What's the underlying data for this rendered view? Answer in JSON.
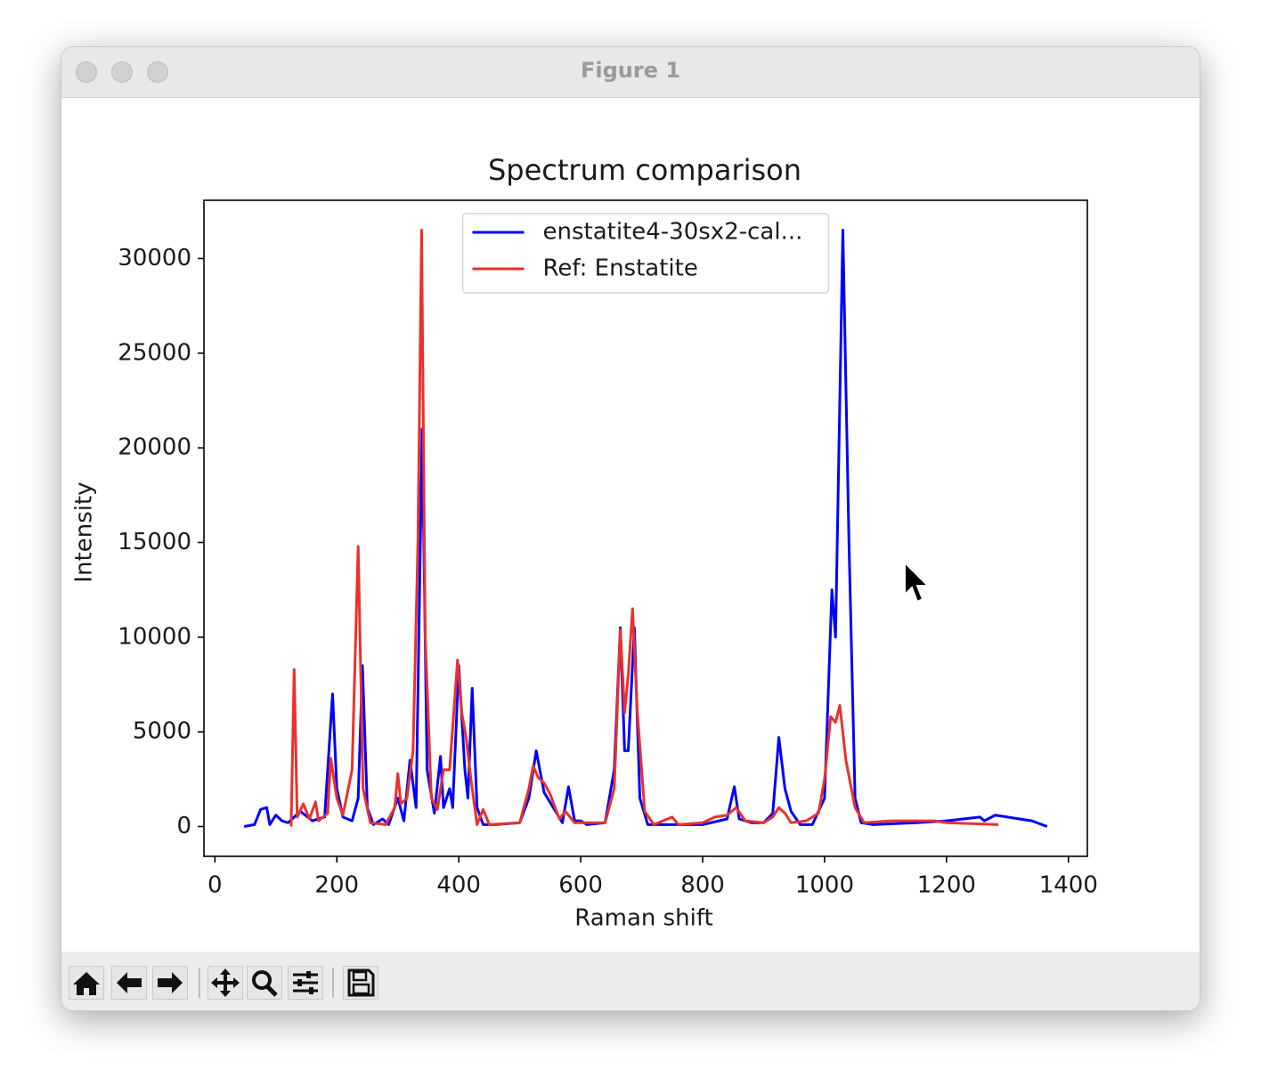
{
  "window": {
    "title": "Figure 1"
  },
  "chart_data": {
    "type": "line",
    "title": "Spectrum comparison",
    "x_label": "Raman shift",
    "y_label": "Intensity",
    "xlim": [
      -18,
      1431
    ],
    "ylim": [
      -1575,
      33075
    ],
    "xticks": [
      0,
      200,
      400,
      600,
      800,
      1000,
      1200,
      1400
    ],
    "yticks": [
      0,
      5000,
      10000,
      15000,
      20000,
      25000,
      30000
    ],
    "legend": "upper center",
    "grid": false,
    "series": [
      {
        "name": "enstatite4-30sx2-cal...",
        "color": "#0000ff",
        "x": [
          48,
          65,
          75,
          85,
          90,
          100,
          110,
          120,
          140,
          160,
          180,
          193,
          200,
          210,
          225,
          235,
          242,
          250,
          260,
          275,
          285,
          300,
          310,
          320,
          330,
          340,
          348,
          360,
          370,
          375,
          385,
          390,
          400,
          410,
          415,
          422,
          430,
          440,
          460,
          500,
          515,
          527,
          540,
          555,
          570,
          580,
          590,
          600,
          610,
          640,
          655,
          665,
          672,
          678,
          688,
          697,
          710,
          740,
          800,
          840,
          852,
          860,
          880,
          900,
          915,
          925,
          935,
          945,
          960,
          980,
          1000,
          1012,
          1018,
          1030,
          1040,
          1050,
          1060,
          1080,
          1150,
          1200,
          1255,
          1262,
          1280,
          1300,
          1340,
          1365
        ],
        "values": [
          0,
          100,
          900,
          1000,
          100,
          600,
          300,
          200,
          800,
          300,
          500,
          7000,
          2000,
          500,
          300,
          1500,
          8500,
          1000,
          100,
          400,
          100,
          1500,
          300,
          3500,
          1000,
          21000,
          3000,
          700,
          3700,
          1000,
          2000,
          1000,
          8500,
          3000,
          1500,
          7300,
          1000,
          100,
          100,
          200,
          1500,
          4000,
          1800,
          1000,
          200,
          2100,
          300,
          300,
          100,
          200,
          3000,
          10500,
          4000,
          4000,
          10500,
          1500,
          100,
          100,
          100,
          400,
          2100,
          400,
          200,
          200,
          700,
          4700,
          2000,
          800,
          100,
          100,
          1500,
          12500,
          10000,
          31500,
          15000,
          1500,
          200,
          100,
          200,
          300,
          500,
          300,
          600,
          500,
          300,
          0
        ]
      },
      {
        "name": "Ref: Enstatite",
        "color": "#e8322b",
        "x": [
          125,
          130,
          135,
          145,
          155,
          165,
          170,
          185,
          190,
          200,
          210,
          225,
          235,
          243,
          255,
          280,
          295,
          300,
          305,
          315,
          325,
          333,
          339,
          345,
          355,
          365,
          375,
          385,
          398,
          405,
          412,
          420,
          430,
          440,
          450,
          500,
          515,
          522,
          530,
          540,
          550,
          565,
          575,
          590,
          640,
          655,
          665,
          672,
          678,
          685,
          693,
          705,
          720,
          750,
          760,
          800,
          820,
          840,
          855,
          870,
          900,
          915,
          925,
          935,
          945,
          970,
          990,
          1000,
          1010,
          1018,
          1025,
          1035,
          1050,
          1065,
          1110,
          1180,
          1200,
          1285
        ],
        "values": [
          0,
          8300,
          500,
          1200,
          400,
          1300,
          300,
          700,
          3600,
          1500,
          600,
          3000,
          14800,
          2000,
          200,
          100,
          1000,
          2800,
          1200,
          1500,
          4000,
          15000,
          31500,
          10000,
          1500,
          900,
          3000,
          3000,
          8800,
          6000,
          4700,
          2500,
          100,
          900,
          100,
          200,
          2000,
          3200,
          2600,
          2300,
          1700,
          400,
          800,
          200,
          200,
          2000,
          10400,
          6000,
          8000,
          11500,
          6000,
          800,
          100,
          500,
          100,
          200,
          500,
          600,
          1000,
          300,
          200,
          500,
          1000,
          700,
          200,
          300,
          700,
          2500,
          5800,
          5500,
          6400,
          3500,
          1000,
          200,
          300,
          300,
          200,
          100
        ]
      }
    ]
  }
}
